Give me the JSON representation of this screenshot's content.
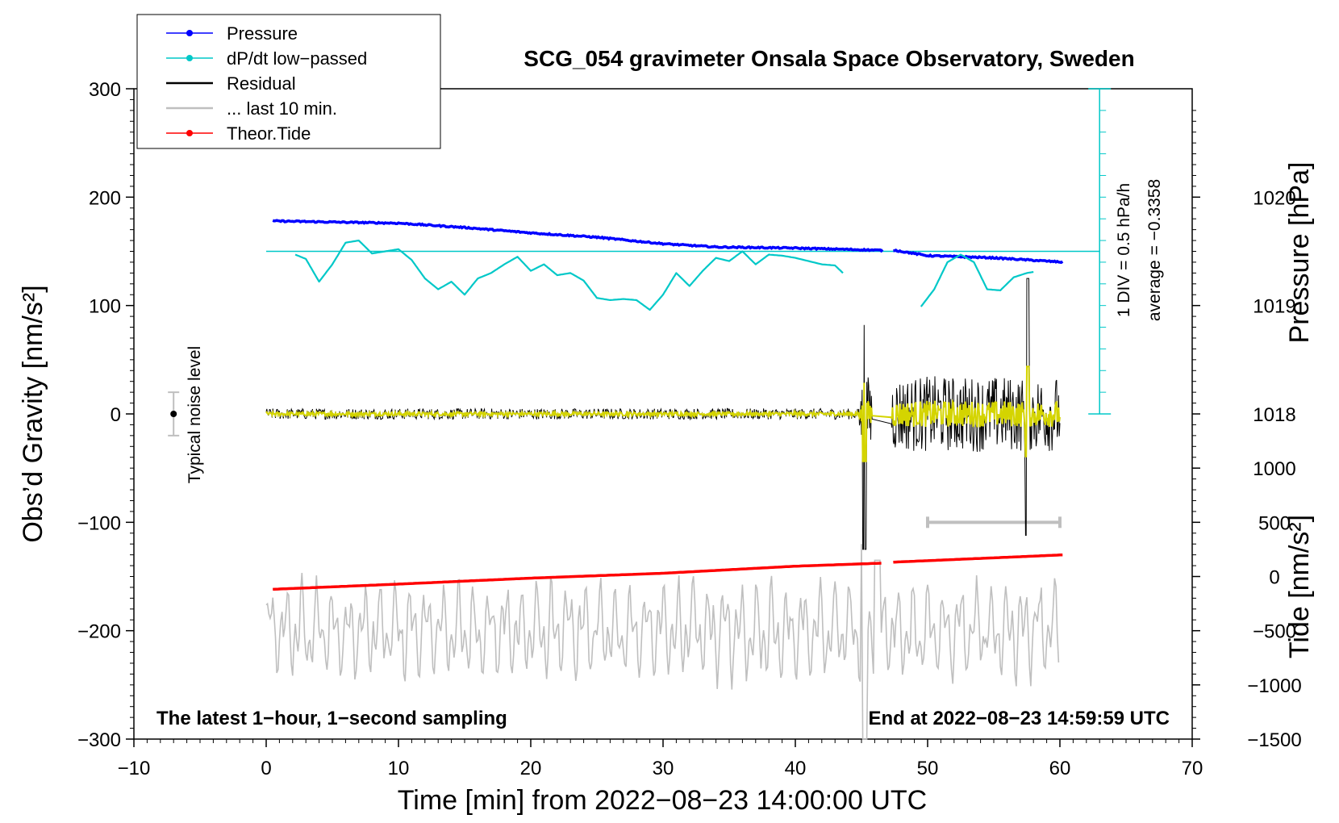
{
  "chart_data": {
    "type": "line",
    "title": "SCG_054 gravimeter Onsala Space Observatory, Sweden",
    "xlabel": "Time [min] from 2022−08−23 14:00:00 UTC",
    "ylabel_left": "Obs’d Gravity [nm/s²]",
    "ylabel_right_top": "Pressure [hPa]",
    "ylabel_right_bottom": "Tide [nm/s²]",
    "xlim": [
      -10,
      70
    ],
    "ylim": [
      -300,
      300
    ],
    "pressure_lim": [
      1015,
      1021
    ],
    "tide_lim": [
      -1500,
      4500
    ],
    "x_ticks": [
      "−10",
      "0",
      "10",
      "20",
      "30",
      "40",
      "50",
      "60",
      "70"
    ],
    "y_ticks": [
      "300",
      "200",
      "100",
      "0",
      "−100",
      "−200",
      "−300"
    ],
    "pressure_ticks": [
      "1020",
      "1019",
      "1018"
    ],
    "tide_ticks": [
      "1000",
      "500",
      "0",
      "−500",
      "−1000",
      "−1500"
    ],
    "legend": [
      {
        "label": "Pressure",
        "color": "#0000ff",
        "marker": "dot"
      },
      {
        "label": "dP/dt low−passed",
        "color": "#00c8c8",
        "marker": "dot"
      },
      {
        "label": "Residual",
        "color": "#000000",
        "marker": "line"
      },
      {
        "label": "... last 10 min.",
        "color": "#bfbfbf",
        "marker": "line"
      },
      {
        "label": "Theor.Tide",
        "color": "#ff0000",
        "marker": "dot"
      }
    ],
    "annotations": {
      "latest": "The latest 1−hour, 1−second sampling",
      "end": "End at 2022−08−23 14:59:59 UTC",
      "noise": "Typical noise level",
      "div": "1 DIV = 0.5 hPa/h",
      "average": "average = −0.3358"
    },
    "series": [
      {
        "name": "Pressure",
        "unit": "hPa",
        "x": [
          0.5,
          5,
          10,
          15,
          20,
          25,
          30,
          34,
          40,
          46.5,
          47.5,
          50,
          55,
          60.3
        ],
        "values": [
          1019.78,
          1019.77,
          1019.76,
          1019.72,
          1019.67,
          1019.63,
          1019.57,
          1019.54,
          1019.53,
          1019.51,
          1019.51,
          1019.46,
          1019.44,
          1019.4
        ],
        "gap": [
          46.7,
          47.4
        ]
      },
      {
        "name": "dP/dt low−passed",
        "unit": "nm/s² (display)",
        "baseline": 150,
        "x": [
          2.2,
          3,
          4,
          5,
          6,
          7,
          8,
          9,
          10,
          11,
          12,
          13,
          14,
          15,
          16,
          17,
          18,
          19,
          20,
          21,
          22,
          23,
          24,
          25,
          26,
          27,
          28,
          29,
          30,
          31,
          32,
          33,
          34,
          35,
          36,
          37,
          38,
          39,
          40,
          41,
          42,
          43,
          43.6
        ],
        "values": [
          147,
          143,
          122,
          138,
          158,
          160,
          148,
          150,
          152,
          142,
          125,
          115,
          122,
          110,
          125,
          130,
          138,
          145,
          132,
          138,
          128,
          130,
          123,
          107,
          105,
          106,
          105,
          96,
          110,
          130,
          118,
          132,
          144,
          141,
          150,
          138,
          147,
          146,
          144,
          141,
          138,
          137,
          130
        ]
      },
      {
        "name": "dP/dt low−passed (seg 2)",
        "x": [
          49.5,
          50.5,
          51.5,
          52.5,
          53.5,
          54.5,
          55.5,
          56.5,
          57.5,
          58
        ],
        "values": [
          99,
          115,
          140,
          147,
          140,
          115,
          114,
          126,
          130,
          131
        ]
      },
      {
        "name": "Residual",
        "unit": "nm/s²",
        "x_range": [
          0,
          60
        ],
        "amplitude_quiet": 5,
        "amplitude_active": 35,
        "peaks": [
          {
            "x": 45.2,
            "max": 82,
            "min": -125
          },
          {
            "x": 57.5,
            "max": 125,
            "min": -112
          }
        ]
      },
      {
        "name": "... last 10 min.",
        "unit": "nm/s²",
        "x_range": [
          0,
          60
        ],
        "center": -200,
        "amplitude": 25,
        "peaks": [
          {
            "x": 45.2,
            "max": -120,
            "min": -300
          },
          {
            "x": 46.2,
            "max": -135,
            "min": -240
          }
        ]
      },
      {
        "name": "Theor.Tide",
        "unit": "nm/s²",
        "x": [
          0.5,
          10,
          20,
          30,
          40,
          46.5,
          47.5,
          60.3
        ],
        "values": [
          -118,
          -70,
          -15,
          30,
          95,
          123,
          133,
          200
        ],
        "gap": [
          46.7,
          47.4
        ]
      }
    ]
  }
}
